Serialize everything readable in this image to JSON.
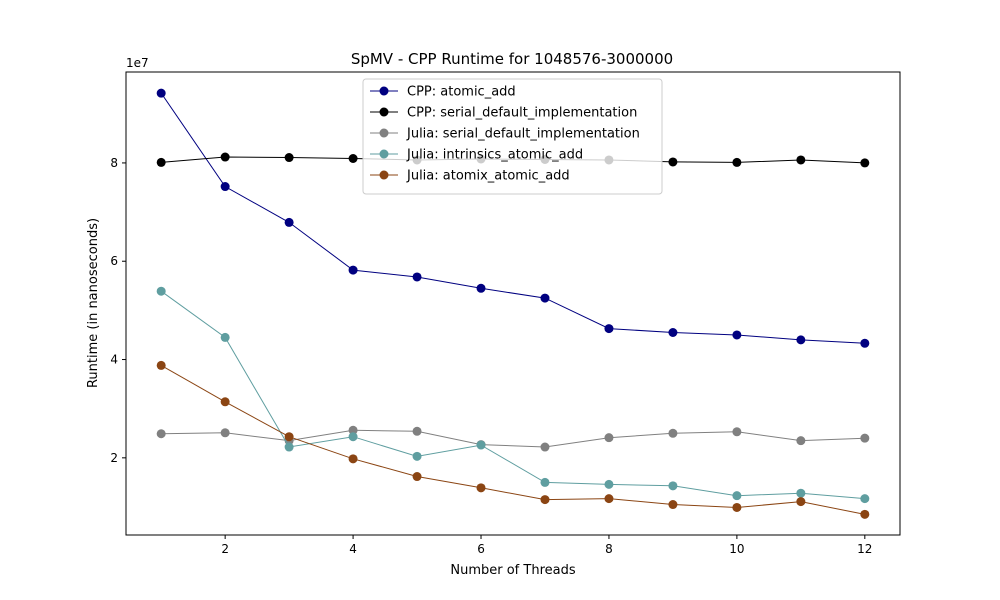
{
  "chart_data": {
    "type": "line",
    "title": "SpMV - CPP Runtime for 1048576-3000000",
    "xlabel": "Number of Threads",
    "ylabel": "Runtime (in nanoseconds)",
    "y_offset_text": "1e7",
    "y_scale": 10000000,
    "xlim": [
      0.45,
      12.55
    ],
    "ylim": [
      4300000,
      98500000
    ],
    "x_ticks": [
      2,
      4,
      6,
      8,
      10,
      12
    ],
    "y_ticks": [
      20000000,
      40000000,
      60000000,
      80000000
    ],
    "y_tick_labels": [
      "2",
      "4",
      "6",
      "8"
    ],
    "grid": false,
    "legend_position": "upper center",
    "x": [
      1,
      2,
      3,
      4,
      5,
      6,
      7,
      8,
      9,
      10,
      11,
      12
    ],
    "series": [
      {
        "name": "CPP: atomic_add",
        "color": "#000080",
        "values": [
          94200000,
          75200000,
          67900000,
          58200000,
          56800000,
          54500000,
          52500000,
          46300000,
          45500000,
          45000000,
          44000000,
          43300000
        ]
      },
      {
        "name": "CPP: serial_default_implementation",
        "color": "#000000",
        "values": [
          80100000,
          81200000,
          81100000,
          80900000,
          80600000,
          80800000,
          80700000,
          80600000,
          80200000,
          80100000,
          80600000,
          80000000
        ]
      },
      {
        "name": "Julia: serial_default_implementation",
        "color": "#808080",
        "values": [
          24900000,
          25100000,
          23500000,
          25600000,
          25400000,
          22700000,
          22200000,
          24100000,
          25000000,
          25300000,
          23500000,
          24000000
        ]
      },
      {
        "name": "Julia: intrinsics_atomic_add",
        "color": "#5f9ea0",
        "values": [
          53900000,
          44500000,
          22200000,
          24300000,
          20300000,
          22600000,
          15000000,
          14600000,
          14300000,
          12300000,
          12800000,
          11700000
        ]
      },
      {
        "name": "Julia: atomix_atomic_add",
        "color": "#8b4513",
        "values": [
          38800000,
          31400000,
          24300000,
          19800000,
          16200000,
          13900000,
          11500000,
          11700000,
          10500000,
          9900000,
          11100000,
          8500000
        ]
      }
    ]
  }
}
